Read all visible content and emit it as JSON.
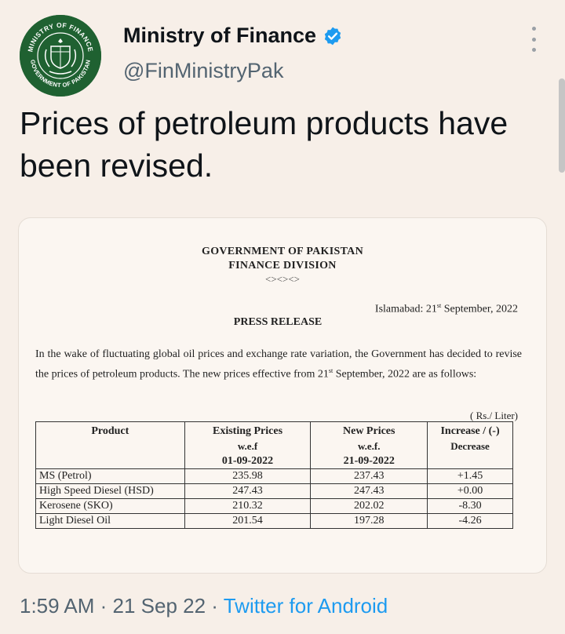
{
  "account": {
    "name": "Ministry of Finance",
    "handle": "@FinMinistryPak",
    "avatar_ring_text_top": "MINISTRY OF FINANCE",
    "avatar_ring_text_bottom": "GOVERNMENT OF PAKISTAN"
  },
  "tweet": {
    "text": "Prices of petroleum products have been revised."
  },
  "document": {
    "header_line1": "GOVERNMENT OF PAKISTAN",
    "header_line2": "FINANCE DIVISION",
    "ornament": "<><><>",
    "dateline_prefix": "Islamabad: 21",
    "dateline_sup": "st",
    "dateline_suffix": " September, 2022",
    "press_release": "PRESS RELEASE",
    "body_part1": "In the wake of fluctuating global oil prices and exchange rate variation, the Government has decided to revise the prices of petroleum products. The new prices effective from 21",
    "body_sup": "st",
    "body_part2": " September, 2022 are as follows:",
    "unit": "( Rs./ Liter)",
    "table": {
      "headers": {
        "product": "Product",
        "existing_title": "Existing Prices",
        "existing_wef": "w.e.f",
        "existing_date": "01-09-2022",
        "new_title": "New Prices",
        "new_wef": "w.e.f.",
        "new_date": "21-09-2022",
        "change_title": "Increase / (-)",
        "change_sub": "Decrease"
      },
      "rows": [
        {
          "product": "MS (Petrol)",
          "existing": "235.98",
          "new": "237.43",
          "change": "+1.45"
        },
        {
          "product": "High Speed Diesel (HSD)",
          "existing": "247.43",
          "new": "247.43",
          "change": "+0.00"
        },
        {
          "product": "Kerosene (SKO)",
          "existing": "210.32",
          "new": "202.02",
          "change": "-8.30"
        },
        {
          "product": "Light Diesel Oil",
          "existing": "201.54",
          "new": "197.28",
          "change": "-4.26"
        }
      ]
    }
  },
  "footer": {
    "time": "1:59 AM",
    "sep1": " · ",
    "date": "21 Sep 22",
    "sep2": " · ",
    "source": "Twitter for Android"
  },
  "colors": {
    "background": "#f7efe8",
    "link": "#1d9bf0",
    "secondary_text": "#536471",
    "avatar_green": "#1f6131",
    "verified_blue": "#1d9bf0"
  }
}
